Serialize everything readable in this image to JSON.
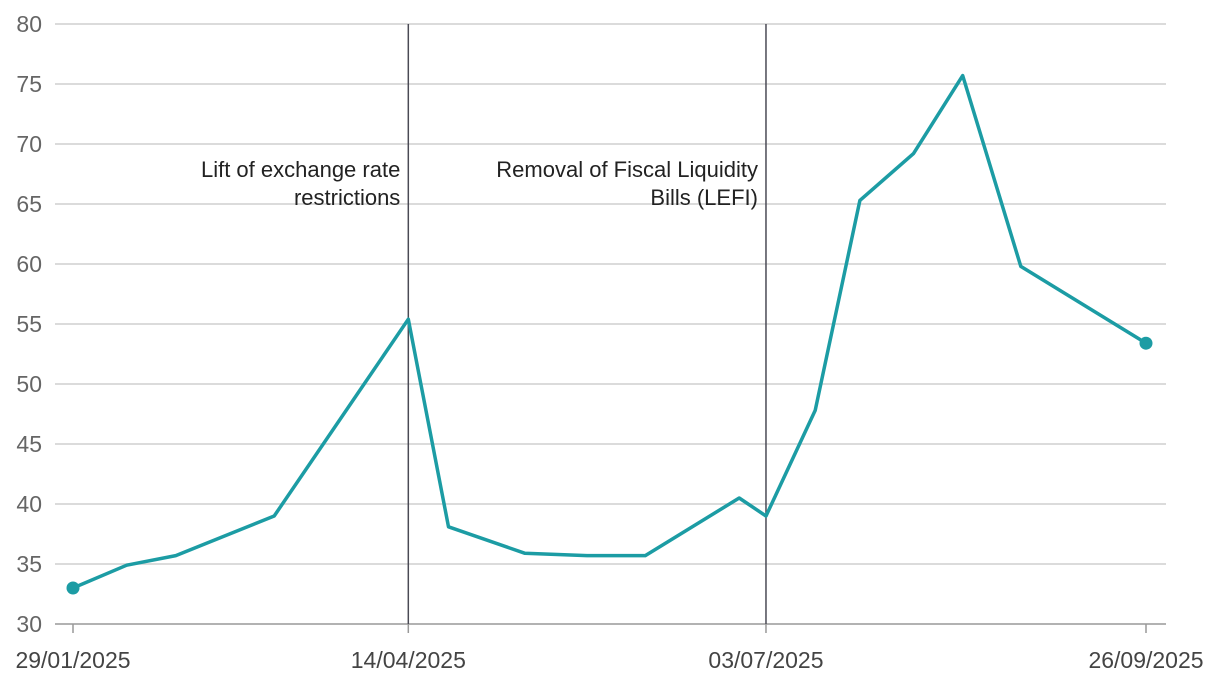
{
  "chart_data": {
    "type": "line",
    "x": [
      "29/01/2025",
      "10/02/2025",
      "21/02/2025",
      "05/03/2025",
      "15/03/2025",
      "14/04/2025",
      "23/04/2025",
      "10/05/2025",
      "24/05/2025",
      "06/06/2025",
      "27/06/2025",
      "03/07/2025",
      "14/07/2025",
      "24/07/2025",
      "05/08/2025",
      "16/08/2025",
      "29/08/2025",
      "26/09/2025"
    ],
    "series": [
      {
        "values": [
          33.0,
          34.9,
          35.7,
          37.5,
          39.0,
          55.4,
          38.1,
          35.9,
          35.7,
          35.7,
          40.5,
          39.0,
          47.8,
          65.3,
          69.2,
          75.7,
          59.8,
          53.4
        ]
      }
    ],
    "xticks": [
      "29/01/2025",
      "14/04/2025",
      "03/07/2025",
      "26/09/2025"
    ],
    "yticks": [
      "30",
      "35",
      "40",
      "45",
      "50",
      "55",
      "60",
      "65",
      "70",
      "75",
      "80"
    ],
    "ylim": [
      30,
      80
    ],
    "grid": true,
    "annotations": [
      {
        "date": "14/04/2025",
        "lines": [
          "Lift of exchange rate",
          "restrictions"
        ]
      },
      {
        "date": "03/07/2025",
        "lines": [
          "Removal of Fiscal Liquidity",
          "Bills (LEFI)"
        ]
      }
    ],
    "colors": {
      "series": "#1c9ca4",
      "grid": "#cfcfcf",
      "marker_line": "#4a4a55"
    }
  }
}
